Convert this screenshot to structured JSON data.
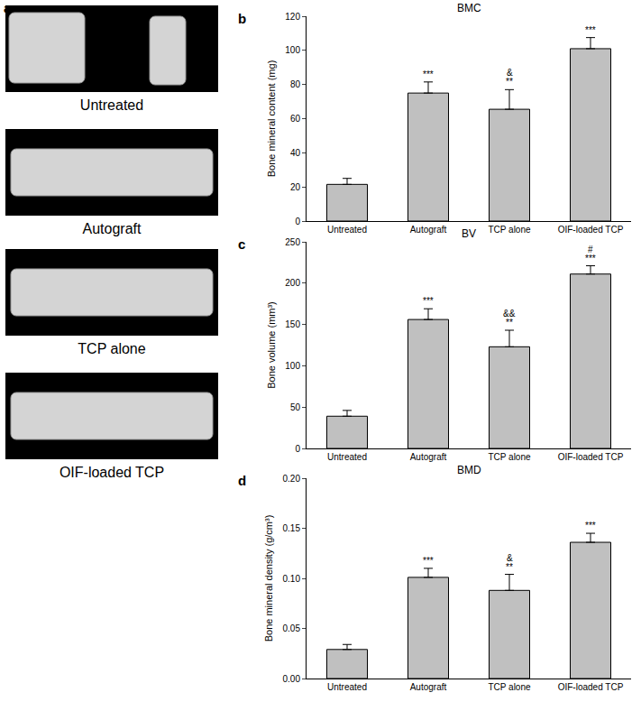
{
  "panel_a": {
    "label": "a",
    "images": [
      "Untreated",
      "Autograft",
      "TCP alone",
      "OIF-loaded TCP"
    ]
  },
  "chart_data": [
    {
      "type": "bar",
      "title": "BMC",
      "y_label": "Bone mineral content (mg)",
      "categories": [
        "Untreated",
        "Autograft",
        "TCP alone",
        "OIF-loaded TCP"
      ],
      "values": [
        21.5,
        75,
        65.5,
        101
      ],
      "errors": [
        3.5,
        6.5,
        11.5,
        6.5
      ],
      "color": "#c0c0c0",
      "ylim": [
        0,
        120
      ],
      "yticks": [
        0,
        20,
        40,
        60,
        80,
        100,
        120
      ],
      "grid": false,
      "annotations": [
        {
          "text": "b"
        },
        {
          "text": "***",
          "category": "Autograft"
        },
        {
          "text": "**",
          "category": "TCP alone"
        },
        {
          "text": "&",
          "category": "TCP alone"
        },
        {
          "text": "***",
          "category": "OIF-loaded TCP"
        }
      ]
    },
    {
      "type": "bar",
      "title": "BV",
      "y_label": "Bone volume (mm³)",
      "categories": [
        "Untreated",
        "Autograft",
        "TCP alone",
        "OIF-loaded TCP"
      ],
      "values": [
        39,
        156,
        123,
        211
      ],
      "errors": [
        7,
        13,
        20,
        10
      ],
      "color": "#c0c0c0",
      "ylim": [
        0,
        250
      ],
      "yticks": [
        0,
        50,
        100,
        150,
        200,
        250
      ],
      "grid": false,
      "annotations": [
        {
          "text": "c"
        },
        {
          "text": "***",
          "category": "Autograft"
        },
        {
          "text": "**",
          "category": "TCP alone"
        },
        {
          "text": "&&",
          "category": "TCP alone"
        },
        {
          "text": "***",
          "category": "OIF-loaded TCP"
        },
        {
          "text": "#",
          "category": "OIF-loaded TCP"
        }
      ]
    },
    {
      "type": "bar",
      "title": "BMD",
      "y_label": "Bone mineral density (g/cm³)",
      "categories": [
        "Untreated",
        "Autograft",
        "TCP alone",
        "OIF-loaded TCP"
      ],
      "values": [
        0.029,
        0.101,
        0.088,
        0.136
      ],
      "errors": [
        0.005,
        0.009,
        0.016,
        0.009
      ],
      "color": "#c0c0c0",
      "ylim": [
        0,
        0.2
      ],
      "yticks": [
        {
          "value": 0,
          "label": "0.00"
        },
        {
          "value": 0.05,
          "label": "0.05"
        },
        {
          "value": 0.1,
          "label": "0.10"
        },
        {
          "value": 0.15,
          "label": "0.15"
        },
        {
          "value": 0.2,
          "label": "0.20"
        }
      ],
      "grid": false,
      "annotations": [
        {
          "text": "d"
        },
        {
          "text": "***",
          "category": "Autograft"
        },
        {
          "text": "**",
          "category": "TCP alone"
        },
        {
          "text": "&",
          "category": "TCP alone"
        },
        {
          "text": "***",
          "category": "OIF-loaded TCP"
        }
      ]
    }
  ]
}
